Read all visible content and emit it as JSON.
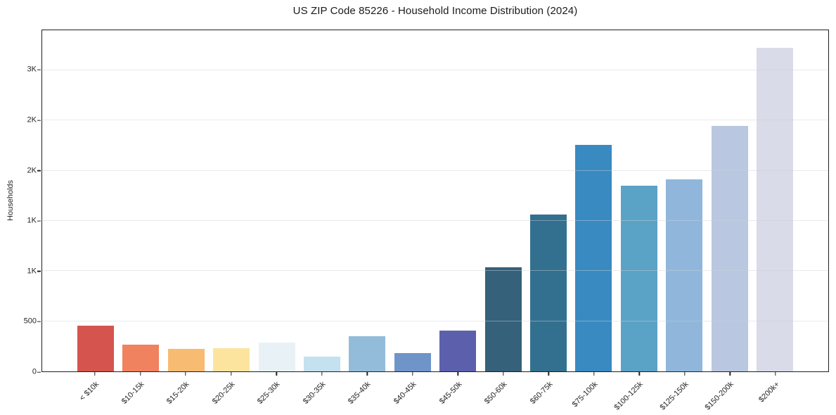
{
  "chart_data": {
    "type": "bar",
    "title": "US ZIP Code 85226 - Household Income Distribution (2024)",
    "xlabel": "",
    "ylabel": "Households",
    "categories": [
      "< $10k",
      "$10-15k",
      "$15-20k",
      "$20-25k",
      "$25-30k",
      "$30-35k",
      "$35-40k",
      "$40-45k",
      "$45-50k",
      "$50-60k",
      "$60-75k",
      "$75-100k",
      "$100-125k",
      "$125-150k",
      "$150-200k",
      "$200k+"
    ],
    "values": [
      455,
      265,
      225,
      230,
      290,
      150,
      350,
      185,
      408,
      1040,
      1560,
      2260,
      1850,
      1915,
      2450,
      3225
    ],
    "bar_colors": [
      "#d6544e",
      "#f0825f",
      "#f7bb71",
      "#fce49e",
      "#e8f2f6",
      "#c3e1ee",
      "#93bcdb",
      "#6f94c9",
      "#5c60ac",
      "#35617a",
      "#33708f",
      "#398ac1",
      "#5ba2c7",
      "#90b7db",
      "#bac7e0",
      "#d9dbe8"
    ],
    "ylim": [
      0,
      3400
    ],
    "yticks": [
      {
        "value": 0,
        "label": "0"
      },
      {
        "value": 500,
        "label": "500"
      },
      {
        "value": 1000,
        "label": "1K"
      },
      {
        "value": 1500,
        "label": "1K"
      },
      {
        "value": 2000,
        "label": "2K"
      },
      {
        "value": 2500,
        "label": "2K"
      },
      {
        "value": 3000,
        "label": "3K"
      }
    ],
    "grid": "horizontal",
    "legend": "none",
    "x_tick_rotation": 45,
    "spine_color": "#1f1f1f",
    "background": "#ffffff"
  }
}
